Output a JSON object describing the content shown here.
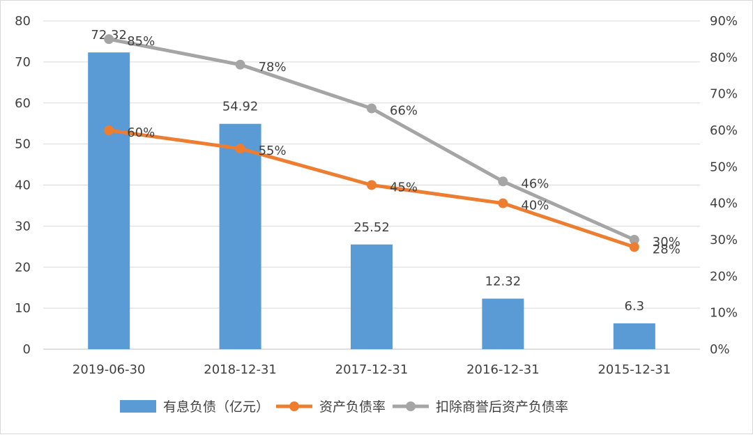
{
  "chart_data": {
    "type": "bar",
    "categories": [
      "2019-06-30",
      "2018-12-31",
      "2017-12-31",
      "2016-12-31",
      "2015-12-31"
    ],
    "series": [
      {
        "name": "有息负债（亿元）",
        "kind": "bar",
        "axis": "left",
        "color": "#5B9BD5",
        "values": [
          72.32,
          54.92,
          25.52,
          12.32,
          6.3
        ],
        "labels": [
          "72.32",
          "54.92",
          "25.52",
          "12.32",
          "6.3"
        ]
      },
      {
        "name": "资产负债率",
        "kind": "line",
        "axis": "right",
        "color": "#ED7D31",
        "values": [
          60,
          55,
          45,
          40,
          28
        ],
        "labels": [
          "60%",
          "55%",
          "45%",
          "40%",
          "28%"
        ]
      },
      {
        "name": "扣除商誉后资产负债率",
        "kind": "line",
        "axis": "right",
        "color": "#A5A5A5",
        "values": [
          85,
          78,
          66,
          46,
          30
        ],
        "labels": [
          "85%",
          "78%",
          "66%",
          "46%",
          "30%"
        ]
      }
    ],
    "y_left": {
      "ylim": [
        0,
        80
      ],
      "ticks": [
        "0",
        "10",
        "20",
        "30",
        "40",
        "50",
        "60",
        "70",
        "80"
      ]
    },
    "y_right": {
      "ylim": [
        0,
        90
      ],
      "ticks": [
        "0%",
        "10%",
        "20%",
        "30%",
        "40%",
        "50%",
        "60%",
        "70%",
        "80%",
        "90%"
      ]
    },
    "grid": true,
    "legend": "bottom"
  }
}
